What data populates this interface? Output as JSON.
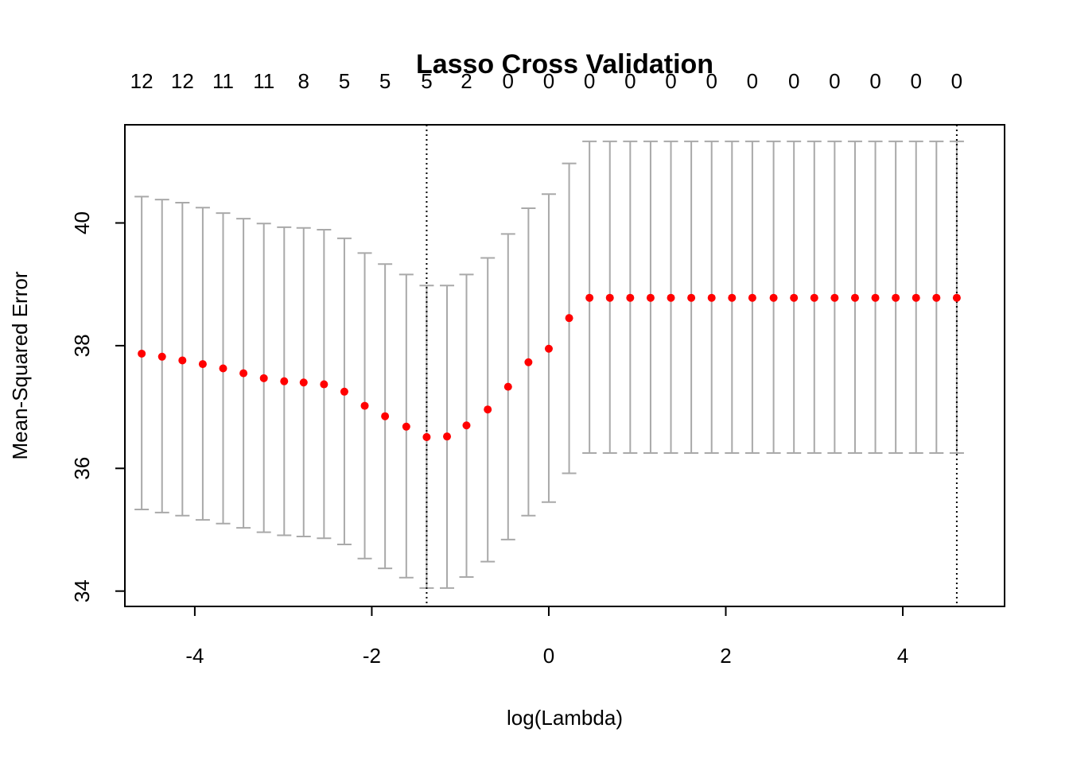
{
  "chart_data": {
    "type": "scatter",
    "title": "Lasso Cross Validation",
    "xlabel": "log(Lambda)",
    "ylabel": "Mean-Squared Error",
    "xlim": [
      -4.79,
      5.15
    ],
    "ylim": [
      33.75,
      41.6
    ],
    "x_ticks": [
      -4,
      -2,
      0,
      2,
      4
    ],
    "x_tick_labels": [
      "-4",
      "-2",
      "0",
      "2",
      "4"
    ],
    "y_ticks": [
      34,
      36,
      38,
      40
    ],
    "y_tick_labels": [
      "34",
      "36",
      "38",
      "40"
    ],
    "top_axis_ticks": [
      -4.6,
      -4.14,
      -3.68,
      -3.22,
      -2.77,
      -2.31,
      -1.85,
      -1.38,
      -0.93,
      -0.46,
      0.0,
      0.46,
      0.92,
      1.38,
      1.84,
      2.3,
      2.77,
      3.23,
      3.69,
      4.15,
      4.61
    ],
    "top_axis_labels": [
      "12",
      "12",
      "11",
      "11",
      "8",
      "5",
      "5",
      "5",
      "2",
      "0",
      "0",
      "0",
      "0",
      "0",
      "0",
      "0",
      "0",
      "0",
      "0",
      "0",
      "0"
    ],
    "vlines": [
      -1.38,
      4.61
    ],
    "grid": false,
    "colors": {
      "point": "#ff0000",
      "errorbar": "#a9a9a9",
      "vline": "#000000"
    },
    "log_lambda": [
      -4.6,
      -4.37,
      -4.14,
      -3.91,
      -3.68,
      -3.45,
      -3.22,
      -2.99,
      -2.77,
      -2.54,
      -2.31,
      -2.08,
      -1.85,
      -1.61,
      -1.38,
      -1.15,
      -0.93,
      -0.69,
      -0.46,
      -0.23,
      0.0,
      0.23,
      0.46,
      0.69,
      0.92,
      1.15,
      1.38,
      1.61,
      1.84,
      2.07,
      2.3,
      2.54,
      2.77,
      3.0,
      3.23,
      3.46,
      3.69,
      3.92,
      4.15,
      4.38,
      4.61
    ],
    "mse": [
      37.87,
      37.82,
      37.76,
      37.7,
      37.63,
      37.55,
      37.47,
      37.42,
      37.4,
      37.37,
      37.25,
      37.02,
      36.85,
      36.68,
      36.51,
      36.52,
      36.7,
      36.96,
      37.33,
      37.73,
      37.95,
      38.45,
      38.78,
      38.78,
      38.78,
      38.78,
      38.78,
      38.78,
      38.78,
      38.78,
      38.78,
      38.78,
      38.78,
      38.78,
      38.78,
      38.78,
      38.78,
      38.78,
      38.78,
      38.78,
      38.78
    ],
    "upper": [
      40.43,
      40.38,
      40.33,
      40.25,
      40.16,
      40.07,
      39.99,
      39.93,
      39.92,
      39.89,
      39.75,
      39.51,
      39.33,
      39.16,
      38.98,
      38.98,
      39.16,
      39.43,
      39.82,
      40.24,
      40.47,
      40.97,
      41.33,
      41.33,
      41.33,
      41.33,
      41.33,
      41.33,
      41.33,
      41.33,
      41.33,
      41.33,
      41.33,
      41.33,
      41.33,
      41.33,
      41.33,
      41.33,
      41.33,
      41.33,
      41.33
    ],
    "lower": [
      35.33,
      35.28,
      35.23,
      35.16,
      35.1,
      35.03,
      34.96,
      34.91,
      34.89,
      34.86,
      34.76,
      34.53,
      34.37,
      34.22,
      34.05,
      34.05,
      34.23,
      34.48,
      34.84,
      35.23,
      35.45,
      35.92,
      36.25,
      36.25,
      36.25,
      36.25,
      36.25,
      36.25,
      36.25,
      36.25,
      36.25,
      36.25,
      36.25,
      36.25,
      36.25,
      36.25,
      36.25,
      36.25,
      36.25,
      36.25,
      36.25
    ]
  }
}
